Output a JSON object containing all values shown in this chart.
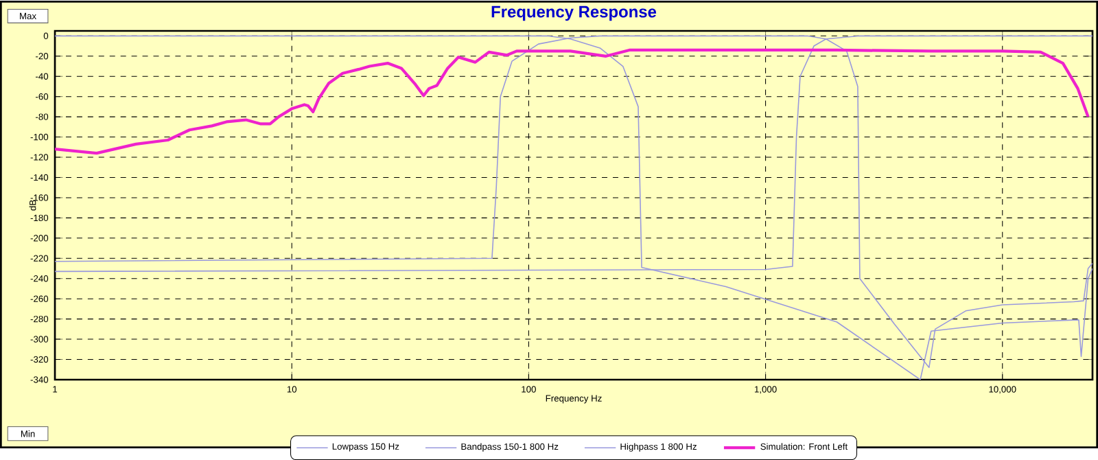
{
  "chart_data": {
    "type": "line",
    "title": "Frequency Response",
    "xlabel": "Frequency Hz",
    "ylabel": "dB",
    "log": "x",
    "xlim": [
      1,
      24000
    ],
    "ylim": [
      -340,
      5
    ],
    "xticks": [
      1,
      10,
      100,
      {
        "value": 1000,
        "label": "1,000"
      },
      {
        "value": 10000,
        "label": "10,000"
      }
    ],
    "yticks": [
      0,
      -20,
      -40,
      -60,
      -80,
      -100,
      -120,
      -140,
      -160,
      -180,
      -200,
      -220,
      -240,
      -260,
      -280,
      -300,
      -320,
      -340
    ],
    "grid": true,
    "legend": "bottom",
    "marker": "none",
    "line_style": "solid",
    "annotations": [
      "Max",
      "Min"
    ],
    "series": [
      {
        "name": "Lowpass  150 Hz",
        "color": "#9999dd",
        "x": [
          1,
          120,
          150,
          200,
          250,
          290,
          300,
          680,
          2000,
          4500,
          5000,
          10000,
          20000,
          21000,
          21500,
          23000,
          24000
        ],
        "values": [
          0,
          0,
          -3,
          -12,
          -30,
          -70,
          -229,
          -248,
          -283,
          -340,
          -292,
          -284,
          -281,
          -281,
          -317,
          -240,
          -230
        ]
      },
      {
        "name": "Bandpass   150-1 800 Hz",
        "color": "#9999dd",
        "x": [
          1,
          70,
          73,
          76,
          85,
          110,
          150,
          200,
          1500,
          1800,
          2200,
          2450,
          2500,
          3500,
          4900,
          5200,
          7000,
          10000,
          20000,
          22000,
          23000,
          24000
        ],
        "values": [
          -223,
          -220,
          -150,
          -60,
          -25,
          -8,
          -2,
          0,
          0,
          -3,
          -15,
          -50,
          -240,
          -285,
          -328,
          -290,
          -272,
          -266,
          -263,
          -262,
          -230,
          -225
        ]
      },
      {
        "name": "Highpass  1 800 Hz",
        "color": "#9999dd",
        "x": [
          1,
          1000,
          1300,
          1350,
          1400,
          1600,
          1800,
          2500,
          24000
        ],
        "values": [
          -233,
          -231,
          -228,
          -100,
          -40,
          -10,
          -3,
          0,
          0
        ]
      },
      {
        "name": "Simulation: Front Left",
        "color": "#ee22cc",
        "x": [
          1,
          1.5,
          2.2,
          3,
          3.7,
          4.6,
          5.3,
          6.4,
          7.4,
          8.1,
          8.8,
          10,
          11.3,
          11.7,
          12.3,
          13,
          14.3,
          16.4,
          19.2,
          21.3,
          25.4,
          29,
          33,
          36,
          38,
          41,
          45.5,
          50.5,
          59.5,
          68,
          81,
          89,
          100,
          150,
          212,
          266,
          500,
          1000,
          2000,
          5000,
          10000,
          14500,
          18000,
          20800,
          23000
        ],
        "values": [
          -112,
          -116,
          -107,
          -103,
          -93,
          -89,
          -85,
          -83,
          -87,
          -87,
          -80,
          -72,
          -68,
          -69,
          -75,
          -62,
          -47,
          -37,
          -33,
          -30,
          -27,
          -32,
          -47,
          -59,
          -52,
          -49,
          -32,
          -21,
          -26,
          -16,
          -19,
          -15,
          -15,
          -15,
          -20,
          -14,
          -14,
          -14,
          -14,
          -15,
          -15,
          -16,
          -27,
          -52,
          -80
        ]
      }
    ]
  }
}
